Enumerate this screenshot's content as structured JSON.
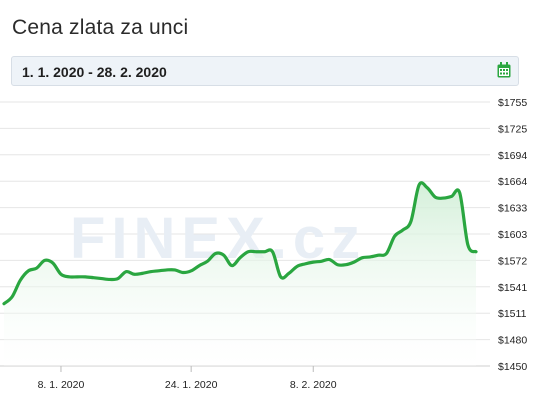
{
  "title": "Cena zlata za unci",
  "date_range": {
    "value": "1. 1. 2020 - 28. 2. 2020",
    "icon": "calendar-icon"
  },
  "watermark": "FINEX.cz",
  "colors": {
    "line": "#2aa640",
    "fill": "#dff3e2",
    "grid": "#e6e6e6"
  },
  "chart_data": {
    "type": "area",
    "title": "Cena zlata za unci",
    "xlabel": "",
    "ylabel": "",
    "y_tick_labels": [
      "$1755",
      "$1725",
      "$1694",
      "$1664",
      "$1633",
      "$1603",
      "$1572",
      "$1541",
      "$1511",
      "$1480",
      "$1450"
    ],
    "x_tick_labels": [
      "8. 1. 2020",
      "24. 1. 2020",
      "8. 2. 2020"
    ],
    "x_tick_dates": [
      "2020-01-08",
      "2020-01-24",
      "2020-02-08"
    ],
    "ylim": [
      1450,
      1755
    ],
    "xlim": [
      "2020-01-01",
      "2020-02-28"
    ],
    "grid": true,
    "series": [
      {
        "x": [
          "2020-01-01",
          "2020-01-02",
          "2020-01-03",
          "2020-01-04",
          "2020-01-05",
          "2020-01-06",
          "2020-01-07",
          "2020-01-08",
          "2020-01-09",
          "2020-01-10",
          "2020-01-11",
          "2020-01-12",
          "2020-01-13",
          "2020-01-14",
          "2020-01-15",
          "2020-01-16",
          "2020-01-17",
          "2020-01-18",
          "2020-01-19",
          "2020-01-20",
          "2020-01-21",
          "2020-01-22",
          "2020-01-23",
          "2020-01-24",
          "2020-01-25",
          "2020-01-26",
          "2020-01-27",
          "2020-01-28",
          "2020-01-29",
          "2020-01-30",
          "2020-01-31",
          "2020-02-01",
          "2020-02-02",
          "2020-02-03",
          "2020-02-04",
          "2020-02-05",
          "2020-02-06",
          "2020-02-07",
          "2020-02-08",
          "2020-02-09",
          "2020-02-10",
          "2020-02-11",
          "2020-02-12",
          "2020-02-13",
          "2020-02-14",
          "2020-02-15",
          "2020-02-16",
          "2020-02-17",
          "2020-02-18",
          "2020-02-19",
          "2020-02-20",
          "2020-02-21",
          "2020-02-22",
          "2020-02-23",
          "2020-02-24",
          "2020-02-25",
          "2020-02-26",
          "2020-02-27",
          "2020-02-28"
        ],
        "y": [
          1522,
          1530,
          1549,
          1560,
          1563,
          1572,
          1569,
          1556,
          1553,
          1553,
          1553,
          1552,
          1551,
          1550,
          1551,
          1559,
          1556,
          1557,
          1559,
          1560,
          1561,
          1561,
          1558,
          1560,
          1566,
          1571,
          1580,
          1578,
          1566,
          1575,
          1582,
          1582,
          1582,
          1582,
          1553,
          1557,
          1565,
          1568,
          1570,
          1571,
          1573,
          1567,
          1567,
          1570,
          1575,
          1576,
          1578,
          1580,
          1600,
          1607,
          1617,
          1659,
          1656,
          1645,
          1644,
          1646,
          1650,
          1590,
          1582
        ]
      }
    ]
  }
}
